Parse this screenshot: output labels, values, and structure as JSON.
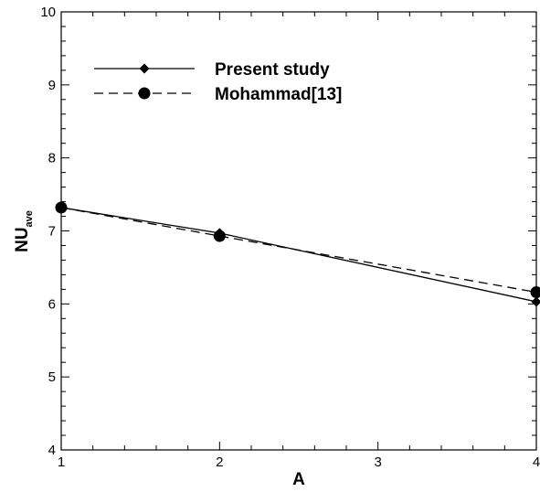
{
  "chart_data": {
    "type": "line",
    "title": "",
    "xlabel": "A",
    "ylabel": {
      "main": "NU",
      "sub": "ave"
    },
    "xlim": [
      1,
      4
    ],
    "ylim": [
      4,
      10
    ],
    "xticks": [
      1,
      2,
      3,
      4
    ],
    "yticks": [
      4,
      5,
      6,
      7,
      8,
      9,
      10
    ],
    "grid": false,
    "legend_position": "top-left",
    "series": [
      {
        "name": "Present study",
        "line_style": "solid",
        "marker": "diamond",
        "color": "#000000",
        "x": [
          1,
          2,
          4
        ],
        "y": [
          7.32,
          6.97,
          6.03
        ]
      },
      {
        "name": "Mohammad[13]",
        "line_style": "dashed",
        "marker": "circle",
        "color": "#000000",
        "x": [
          1,
          2,
          4
        ],
        "y": [
          7.32,
          6.93,
          6.16
        ]
      }
    ]
  }
}
